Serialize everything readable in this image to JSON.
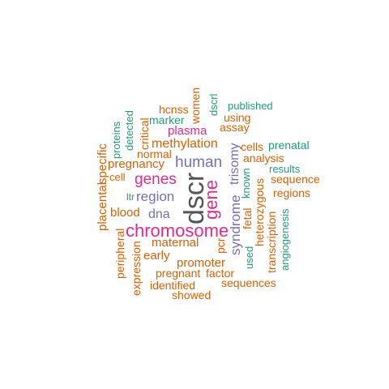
{
  "palette": {
    "green": "#1b9e77",
    "orange": "#d95f02",
    "purple": "#7570b3",
    "magenta": "#e7298a",
    "gray": "#555555"
  },
  "words": [
    {
      "text": "dscr",
      "color": "gray",
      "vertical": true
    },
    {
      "text": "chromosome",
      "color": "magenta",
      "vertical": false
    },
    {
      "text": "gene",
      "color": "magenta",
      "vertical": true
    },
    {
      "text": "genes",
      "color": "magenta",
      "vertical": false
    },
    {
      "text": "human",
      "color": "purple",
      "vertical": false
    },
    {
      "text": "region",
      "color": "purple",
      "vertical": false
    },
    {
      "text": "syndrome",
      "color": "purple",
      "vertical": true
    },
    {
      "text": "trisomy",
      "color": "purple",
      "vertical": true
    },
    {
      "text": "dna",
      "color": "purple",
      "vertical": false
    },
    {
      "text": "methylation",
      "color": "orange",
      "vertical": false
    },
    {
      "text": "plasma",
      "color": "magenta",
      "vertical": false
    },
    {
      "text": "maternal",
      "color": "orange",
      "vertical": false
    },
    {
      "text": "pregnancy",
      "color": "orange",
      "vertical": false
    },
    {
      "text": "blood",
      "color": "orange",
      "vertical": false
    },
    {
      "text": "placental",
      "color": "orange",
      "vertical": true
    },
    {
      "text": "specific",
      "color": "orange",
      "vertical": true
    },
    {
      "text": "promoter",
      "color": "orange",
      "vertical": false
    },
    {
      "text": "early",
      "color": "orange",
      "vertical": false
    },
    {
      "text": "pregnant",
      "color": "orange",
      "vertical": false
    },
    {
      "text": "factor",
      "color": "orange",
      "vertical": false
    },
    {
      "text": "analysis",
      "color": "orange",
      "vertical": false
    },
    {
      "text": "cells",
      "color": "orange",
      "vertical": false
    },
    {
      "text": "assay",
      "color": "orange",
      "vertical": false
    },
    {
      "text": "using",
      "color": "orange",
      "vertical": false
    },
    {
      "text": "heterozygous",
      "color": "orange",
      "vertical": true
    },
    {
      "text": "transcription",
      "color": "orange",
      "vertical": true
    },
    {
      "text": "fetal",
      "color": "orange",
      "vertical": true
    },
    {
      "text": "sequence",
      "color": "orange",
      "vertical": false
    },
    {
      "text": "regions",
      "color": "orange",
      "vertical": false
    },
    {
      "text": "sequences",
      "color": "orange",
      "vertical": false
    },
    {
      "text": "identified",
      "color": "orange",
      "vertical": false
    },
    {
      "text": "showed",
      "color": "orange",
      "vertical": false
    },
    {
      "text": "expression",
      "color": "orange",
      "vertical": true
    },
    {
      "text": "peripheral",
      "color": "orange",
      "vertical": true
    },
    {
      "text": "normal",
      "color": "orange",
      "vertical": false
    },
    {
      "text": "cell",
      "color": "orange",
      "vertical": false
    },
    {
      "text": "critical",
      "color": "orange",
      "vertical": true
    },
    {
      "text": "women",
      "color": "orange",
      "vertical": true
    },
    {
      "text": "hcnss",
      "color": "orange",
      "vertical": false
    },
    {
      "text": "pcr",
      "color": "orange",
      "vertical": true
    },
    {
      "text": "marker",
      "color": "green",
      "vertical": false
    },
    {
      "text": "detected",
      "color": "green",
      "vertical": true
    },
    {
      "text": "proteins",
      "color": "green",
      "vertical": true
    },
    {
      "text": "ltr",
      "color": "green",
      "vertical": false
    },
    {
      "text": "dscrl",
      "color": "green",
      "vertical": true
    },
    {
      "text": "published",
      "color": "green",
      "vertical": false
    },
    {
      "text": "prenatal",
      "color": "green",
      "vertical": false
    },
    {
      "text": "results",
      "color": "green",
      "vertical": false
    },
    {
      "text": "known",
      "color": "green",
      "vertical": true
    },
    {
      "text": "used",
      "color": "green",
      "vertical": true
    },
    {
      "text": "angiogenesis",
      "color": "green",
      "vertical": true
    }
  ]
}
